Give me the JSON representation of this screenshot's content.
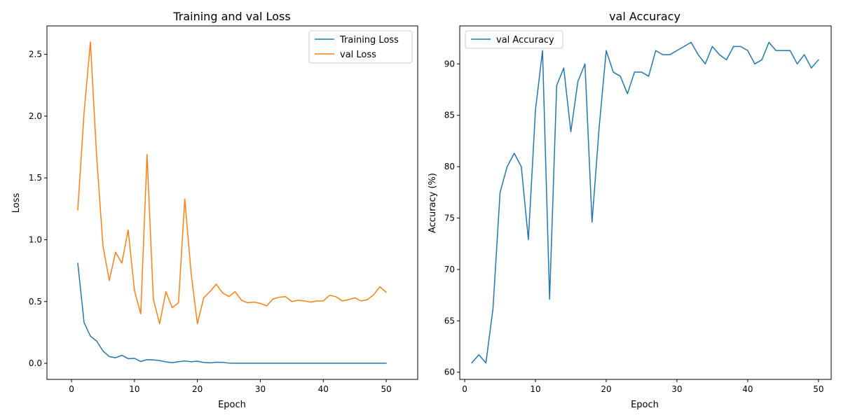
{
  "chart_data": [
    {
      "type": "line",
      "title": "Training and val Loss",
      "xlabel": "Epoch",
      "ylabel": "Loss",
      "xlim": [
        -3.9,
        55.0
      ],
      "ylim": [
        -0.13,
        2.73
      ],
      "xticks": [
        0,
        10,
        20,
        30,
        40,
        50
      ],
      "yticks": [
        0.0,
        0.5,
        1.0,
        1.5,
        2.0,
        2.5
      ],
      "ytick_labels": [
        "0.0",
        "0.5",
        "1.0",
        "1.5",
        "2.0",
        "2.5"
      ],
      "legend_position": "top-right",
      "x": [
        1,
        2,
        3,
        4,
        5,
        6,
        7,
        8,
        9,
        10,
        11,
        12,
        13,
        14,
        15,
        16,
        17,
        18,
        19,
        20,
        21,
        22,
        23,
        24,
        25,
        26,
        27,
        28,
        29,
        30,
        31,
        32,
        33,
        34,
        35,
        36,
        37,
        38,
        39,
        40,
        41,
        42,
        43,
        44,
        45,
        46,
        47,
        48,
        49,
        50
      ],
      "series": [
        {
          "name": "Training Loss",
          "color": "#1f77b4",
          "values": [
            0.81,
            0.33,
            0.22,
            0.18,
            0.1,
            0.055,
            0.045,
            0.065,
            0.038,
            0.04,
            0.015,
            0.03,
            0.028,
            0.022,
            0.012,
            0.005,
            0.013,
            0.019,
            0.013,
            0.017,
            0.007,
            0.004,
            0.009,
            0.008,
            0.002,
            0.001,
            0.001,
            0.001,
            0.001,
            0.001,
            0.001,
            0.001,
            0.001,
            0.001,
            0.001,
            0.001,
            0.001,
            0.001,
            0.001,
            0.001,
            0.001,
            0.001,
            0.001,
            0.001,
            0.001,
            0.001,
            0.001,
            0.001,
            0.001,
            0.001
          ]
        },
        {
          "name": "val Loss",
          "color": "#ff7f0e",
          "values": [
            1.24,
            2.03,
            2.6,
            1.67,
            0.95,
            0.67,
            0.9,
            0.81,
            1.08,
            0.59,
            0.4,
            1.69,
            0.52,
            0.32,
            0.58,
            0.45,
            0.49,
            1.33,
            0.73,
            0.32,
            0.53,
            0.58,
            0.64,
            0.57,
            0.54,
            0.58,
            0.51,
            0.49,
            0.495,
            0.485,
            0.465,
            0.52,
            0.535,
            0.54,
            0.5,
            0.51,
            0.505,
            0.495,
            0.505,
            0.505,
            0.55,
            0.54,
            0.505,
            0.515,
            0.53,
            0.505,
            0.515,
            0.555,
            0.62,
            0.575
          ]
        }
      ]
    },
    {
      "type": "line",
      "title": "val Accuracy",
      "xlabel": "Epoch",
      "ylabel": "Accuracy (%)",
      "xlim": [
        -0.7,
        51.8
      ],
      "ylim": [
        59.3,
        93.7
      ],
      "xticks": [
        0,
        10,
        20,
        30,
        40,
        50
      ],
      "yticks": [
        60,
        65,
        70,
        75,
        80,
        85,
        90
      ],
      "ytick_labels": [
        "60",
        "65",
        "70",
        "75",
        "80",
        "85",
        "90"
      ],
      "legend_position": "top-left",
      "x": [
        1,
        2,
        3,
        4,
        5,
        6,
        7,
        8,
        9,
        10,
        11,
        12,
        13,
        14,
        15,
        16,
        17,
        18,
        19,
        20,
        21,
        22,
        23,
        24,
        25,
        26,
        27,
        28,
        29,
        30,
        31,
        32,
        33,
        34,
        35,
        36,
        37,
        38,
        39,
        40,
        41,
        42,
        43,
        44,
        45,
        46,
        47,
        48,
        49,
        50
      ],
      "series": [
        {
          "name": "val Accuracy",
          "color": "#1f77b4",
          "values": [
            60.9,
            61.7,
            60.9,
            66.2,
            77.5,
            80.0,
            81.3,
            80.0,
            72.9,
            85.5,
            91.3,
            67.1,
            87.9,
            89.6,
            83.4,
            88.3,
            90.0,
            74.6,
            83.8,
            91.3,
            89.2,
            88.8,
            87.1,
            89.2,
            89.2,
            88.8,
            91.3,
            90.9,
            90.9,
            91.3,
            91.7,
            92.1,
            90.9,
            90.0,
            91.7,
            90.9,
            90.4,
            91.7,
            91.7,
            91.3,
            90.0,
            90.4,
            92.1,
            91.3,
            91.3,
            91.3,
            90.0,
            90.9,
            89.6,
            90.4
          ]
        }
      ]
    }
  ]
}
